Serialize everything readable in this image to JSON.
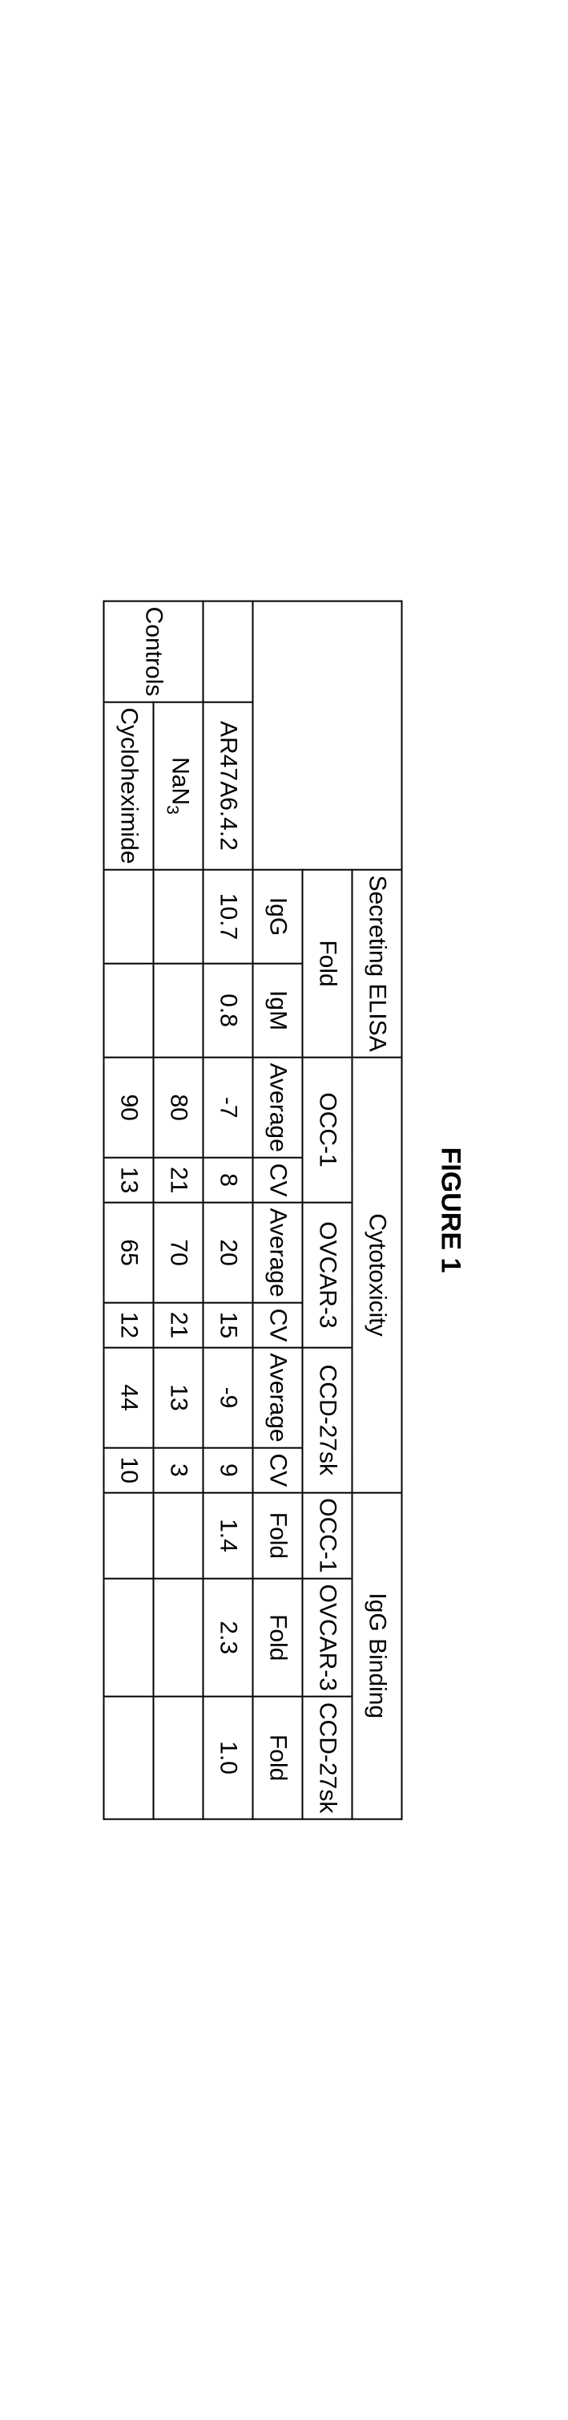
{
  "title": "FIGURE 1",
  "headers": {
    "secreting_elisa": "Secreting ELISA",
    "fold": "Fold",
    "igg": "IgG",
    "igm": "IgM",
    "cytotoxicity": "Cytotoxicity",
    "occ1": "OCC-1",
    "ovcar3": "OVCAR-3",
    "ccd27sk": "CCD-27sk",
    "average": "Average",
    "cv": "CV",
    "igg_binding": "IgG Binding",
    "fold2": "Fold"
  },
  "row_labels": {
    "sample": "AR47A6.4.2",
    "controls": "Controls",
    "nan3": "NaN",
    "nan3_sub": "3",
    "cyclo": "Cycloheximide"
  },
  "sample": {
    "igg": "10.7",
    "igm": "0.8",
    "occ1_avg": "-7",
    "occ1_cv": "8",
    "ovcar3_avg": "20",
    "ovcar3_cv": "15",
    "ccd_avg": "-9",
    "ccd_cv": "9",
    "bind_occ1": "1.4",
    "bind_ovcar3": "2.3",
    "bind_ccd": "1.0"
  },
  "nan3": {
    "occ1_avg": "80",
    "occ1_cv": "21",
    "ovcar3_avg": "70",
    "ovcar3_cv": "21",
    "ccd_avg": "13",
    "ccd_cv": "3"
  },
  "cyclo": {
    "occ1_avg": "90",
    "occ1_cv": "13",
    "ovcar3_avg": "65",
    "ovcar3_cv": "12",
    "ccd_avg": "44",
    "ccd_cv": "10"
  },
  "colwidths": {
    "controls": 210,
    "rowlabel": 330,
    "igg": 115,
    "igm": 115,
    "avg": 200,
    "cv": 100,
    "bind_occ1": 200,
    "bind_ovcar3": 220,
    "bind_ccd": 220
  },
  "style": {
    "border_color": "#000000",
    "bg": "#ffffff",
    "font_size_cell": 30,
    "font_size_title": 34
  }
}
